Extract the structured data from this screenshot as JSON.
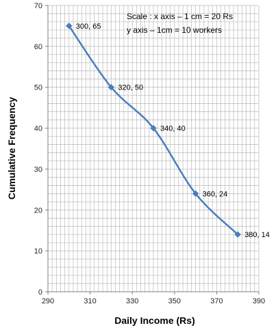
{
  "chart_data": {
    "type": "line",
    "title": "",
    "xlabel": "Daily Income (Rs)",
    "ylabel": "Cumulative Frequency",
    "xlim": [
      290,
      390
    ],
    "ylim": [
      0,
      70
    ],
    "x_ticks": [
      "290",
      "310",
      "330",
      "350",
      "370",
      "390"
    ],
    "y_ticks": [
      "0",
      "10",
      "20",
      "30",
      "40",
      "50",
      "60",
      "70"
    ],
    "grid": true,
    "annotation_lines": [
      "Scale : x axis – 1 cm = 20 Rs",
      "y axis – 1cm = 10 workers"
    ],
    "series": [
      {
        "x": [
          300,
          320,
          340,
          360,
          380
        ],
        "y": [
          65,
          50,
          40,
          24,
          14
        ],
        "labels": [
          "300, 65",
          "320, 50",
          "340, 40",
          "360, 24",
          "380, 14"
        ]
      }
    ],
    "colors": {
      "line": "#4a7ebb",
      "marker": "#4a7ebb",
      "grid": "#b8b8b8",
      "axis": "#7f7f7f"
    }
  }
}
